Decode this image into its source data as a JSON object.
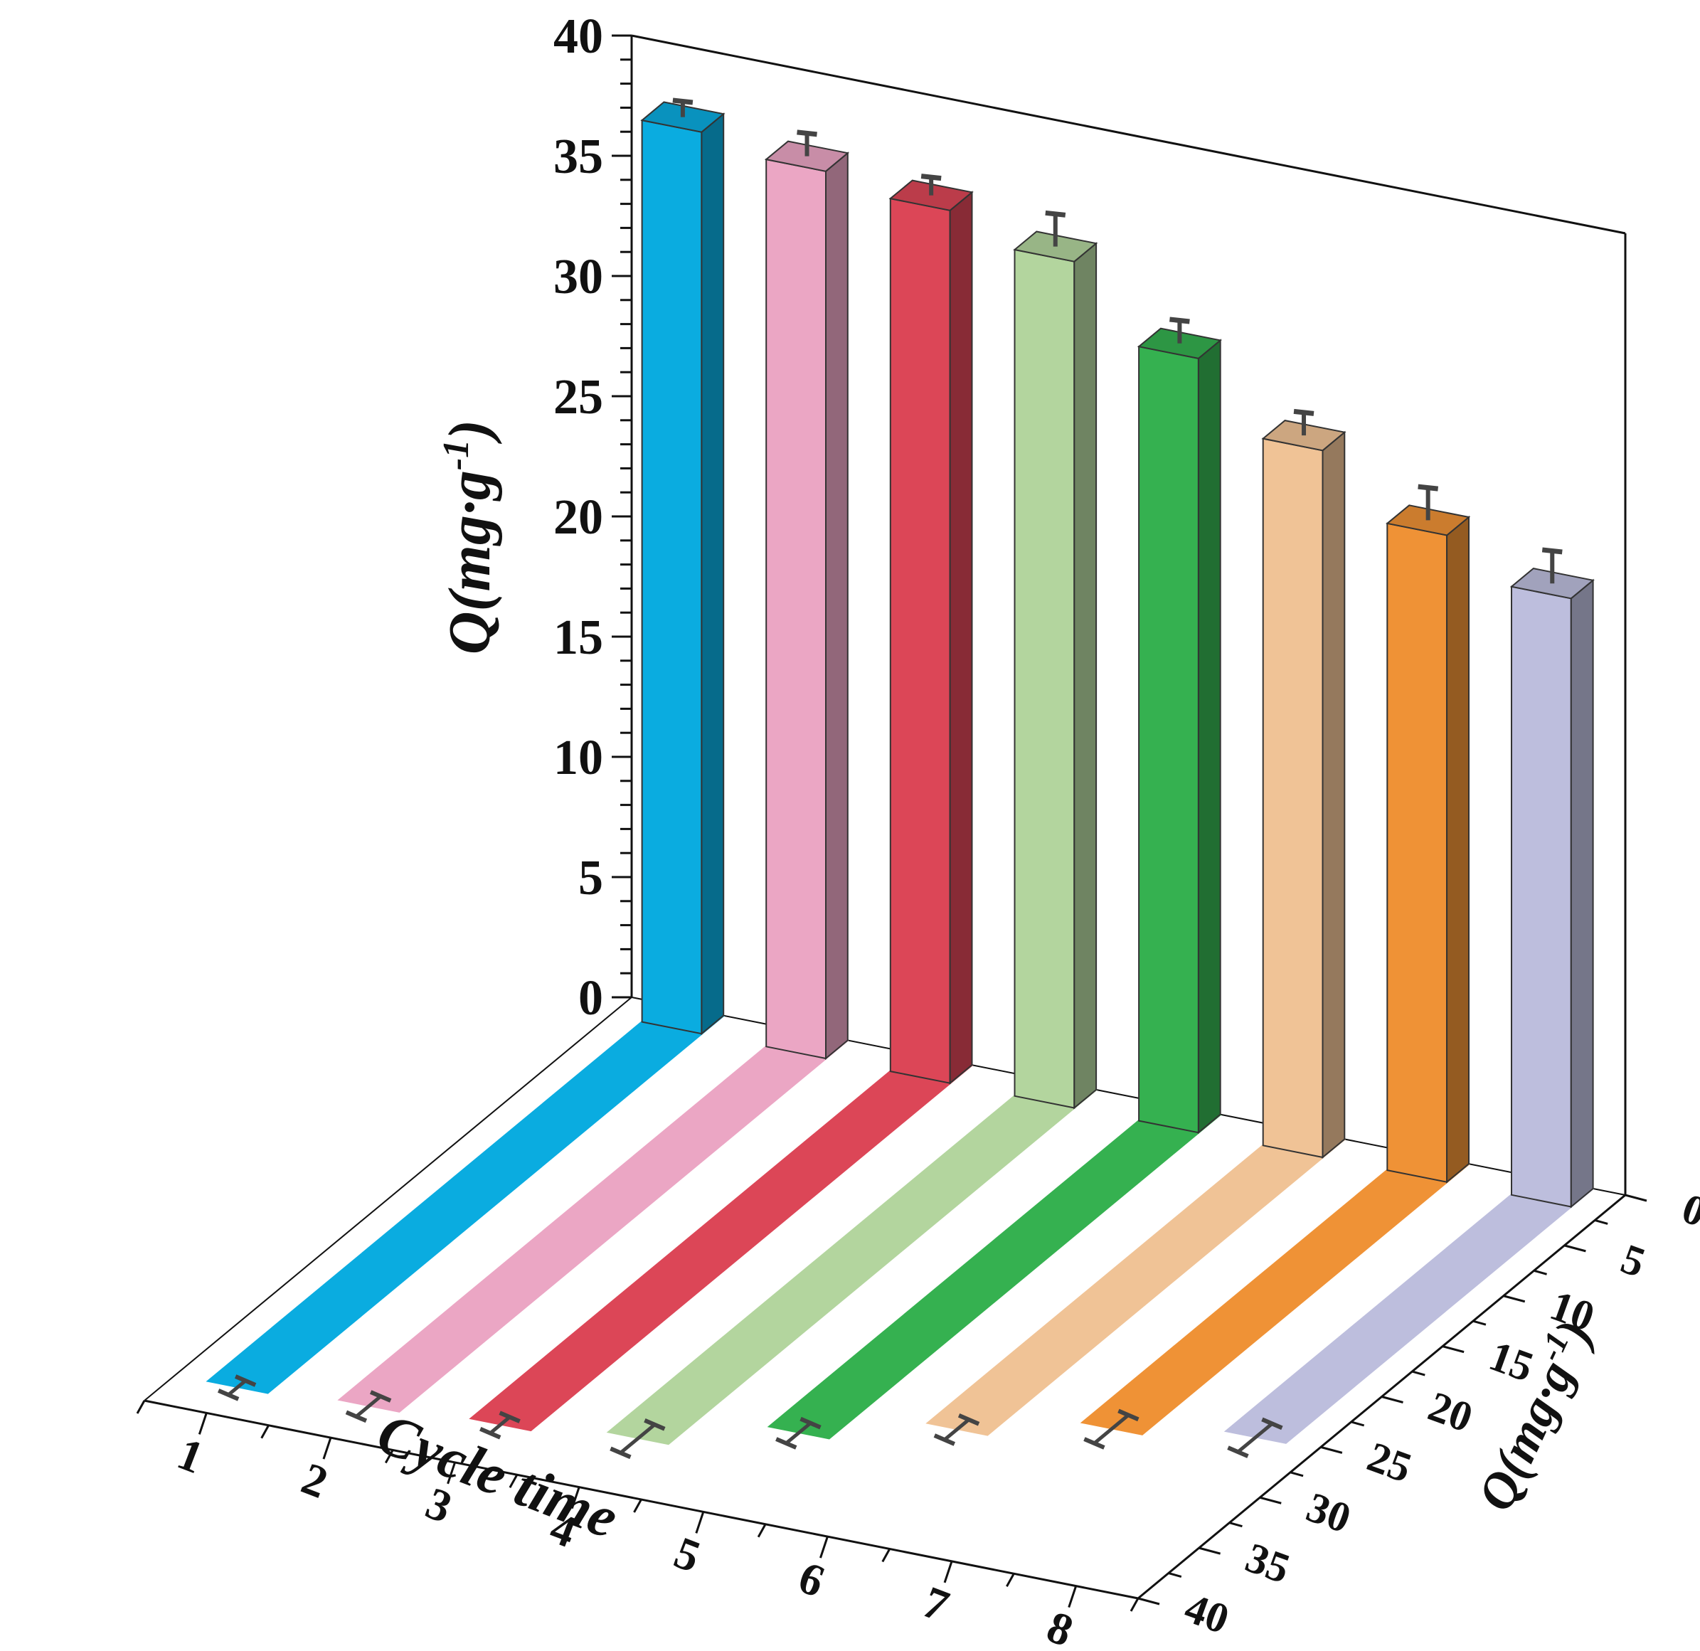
{
  "chart_data": {
    "type": "bar",
    "title": "",
    "categories": [
      "1",
      "2",
      "3",
      "4",
      "5",
      "6",
      "7",
      "8"
    ],
    "values": [
      37.5,
      36.9,
      36.3,
      35.2,
      32.2,
      29.4,
      26.9,
      25.3
    ],
    "errors": [
      0.7,
      1.0,
      0.8,
      1.4,
      1.0,
      1.0,
      1.4,
      1.4
    ],
    "colors": [
      "#0aace0",
      "#eba6c4",
      "#dc4657",
      "#b3d59e",
      "#35b150",
      "#f0c396",
      "#ef9236",
      "#bdbedd"
    ],
    "xlabel": "Cycle time",
    "ylabel": "Q(mg·g",
    "ylabel_superscript": "-1",
    "ylabel_close": ")",
    "zlabel": "Q(mg·g",
    "zlabel_superscript": "-1",
    "zlabel_close": ")",
    "ylim": [
      0,
      40
    ],
    "yticks": [
      "0",
      "5",
      "10",
      "15",
      "20",
      "25",
      "30",
      "35",
      "40"
    ],
    "zticks": [
      "0",
      "5",
      "10",
      "15",
      "20",
      "25",
      "30",
      "35",
      "40"
    ],
    "xticks": [
      "1",
      "2",
      "3",
      "4",
      "5",
      "6",
      "7",
      "8"
    ],
    "projection": "3d",
    "floor_projection": true,
    "grid": false,
    "legend": "none"
  }
}
